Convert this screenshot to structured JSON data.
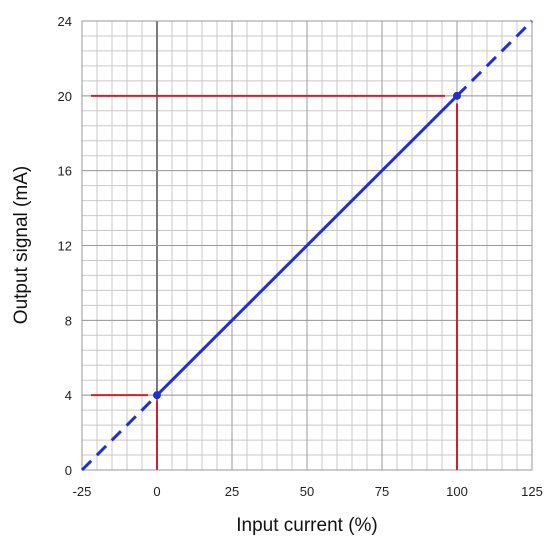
{
  "chart_data": {
    "type": "line",
    "title": "",
    "xlabel": "Input current (%)",
    "ylabel": "Output signal (mA)",
    "xlim": [
      -25,
      125
    ],
    "ylim": [
      0,
      24
    ],
    "x_ticks": [
      -25,
      0,
      25,
      50,
      75,
      100,
      125
    ],
    "y_ticks": [
      0,
      4,
      8,
      12,
      16,
      20,
      24
    ],
    "x_tick_labels": [
      "-25",
      "0",
      "25",
      "50",
      "75",
      "100",
      "125"
    ],
    "y_tick_labels": [
      "0",
      "4",
      "8",
      "12",
      "16",
      "20",
      "24"
    ],
    "grid": true,
    "minor_grid_x_step": 5,
    "minor_grid_y_step": 0.8,
    "series": [
      {
        "style": "solid",
        "color": "#1f2fd0",
        "points": [
          [
            0,
            4
          ],
          [
            100,
            20
          ]
        ]
      },
      {
        "style": "dashed",
        "color": "#1f2fd0",
        "points": [
          [
            -25,
            0
          ],
          [
            0,
            4
          ]
        ]
      },
      {
        "style": "dashed",
        "color": "#1f2fd0",
        "points": [
          [
            100,
            20
          ],
          [
            125,
            24
          ]
        ]
      }
    ],
    "markers": [
      {
        "x": 0,
        "y": 4,
        "color": "#1f2fd0"
      },
      {
        "x": 100,
        "y": 20,
        "color": "#1f2fd0"
      }
    ],
    "reference_lines": [
      {
        "orientation": "horizontal",
        "y": 4,
        "x_from": -22,
        "x_to": -3,
        "color": "#d01f2f"
      },
      {
        "orientation": "vertical",
        "x": 0,
        "y_from": 0,
        "y_to": 3.7,
        "color": "#d01f2f"
      },
      {
        "orientation": "horizontal",
        "y": 20,
        "x_from": -22,
        "x_to": 96,
        "color": "#d01f2f"
      },
      {
        "orientation": "vertical",
        "x": 100,
        "y_from": 0,
        "y_to": 19.6,
        "color": "#d01f2f"
      }
    ],
    "emphasized_axes": {
      "x": 0
    },
    "colors": {
      "minor_grid": "#c9c9c9",
      "major_grid": "#9a9a9a",
      "axis_line": "#7a7a7a"
    }
  }
}
